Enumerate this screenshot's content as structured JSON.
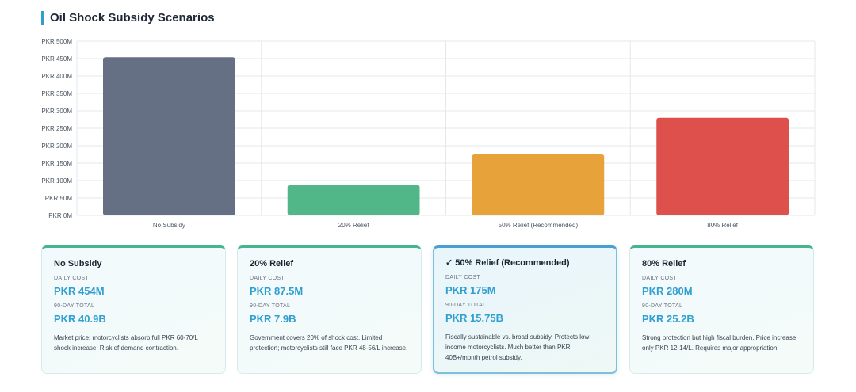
{
  "title": "Oil Shock Subsidy Scenarios",
  "colors": {
    "accent": "#2f9fd0",
    "grid": "#e5e7eb",
    "bars": [
      "#667085",
      "#52b788",
      "#e7a23a",
      "#de504c"
    ]
  },
  "chart_data": {
    "type": "bar",
    "categories": [
      "No Subsidy",
      "20% Relief",
      "50% Relief (Recommended)",
      "80% Relief"
    ],
    "values": [
      454,
      87.5,
      175,
      280
    ],
    "unit": "PKR M",
    "ylim": [
      0,
      500
    ],
    "yticks": [
      {
        "value": 500,
        "label": "PKR 500M"
      },
      {
        "value": 450,
        "label": "PKR 450M"
      },
      {
        "value": 400,
        "label": "PKR 400M"
      },
      {
        "value": 350,
        "label": "PKR 350M"
      },
      {
        "value": 300,
        "label": "PKR 300M"
      },
      {
        "value": 250,
        "label": "PKR 250M"
      },
      {
        "value": 200,
        "label": "PKR 200M"
      },
      {
        "value": 150,
        "label": "PKR 150M"
      },
      {
        "value": 100,
        "label": "PKR 100M"
      },
      {
        "value": 50,
        "label": "PKR 50M"
      },
      {
        "value": 0,
        "label": "PKR 0M"
      }
    ],
    "grid": true,
    "legend": "none"
  },
  "cards": [
    {
      "title": "No Subsidy",
      "daily_label": "DAILY COST",
      "daily_value": "PKR 454M",
      "total_label": "90-DAY TOTAL",
      "total_value": "PKR 40.9B",
      "description": "Market price; motorcyclists absorb full PKR 60-70/L shock increase. Risk of demand contraction."
    },
    {
      "title": "20% Relief",
      "daily_label": "DAILY COST",
      "daily_value": "PKR 87.5M",
      "total_label": "90-DAY TOTAL",
      "total_value": "PKR 7.9B",
      "description": "Government covers 20% of shock cost. Limited protection; motorcyclists still face PKR 48-56/L increase."
    },
    {
      "title": "✓ 50% Relief (Recommended)",
      "daily_label": "DAILY COST",
      "daily_value": "PKR 175M",
      "total_label": "90-DAY TOTAL",
      "total_value": "PKR 15.75B",
      "description": "Fiscally sustainable vs. broad subsidy. Protects low-income motorcyclists. Much better than PKR 40B+/month petrol subsidy."
    },
    {
      "title": "80% Relief",
      "daily_label": "DAILY COST",
      "daily_value": "PKR 280M",
      "total_label": "90-DAY TOTAL",
      "total_value": "PKR 25.2B",
      "description": "Strong protection but high fiscal burden. Price increase only PKR 12-14/L. Requires major appropriation."
    }
  ]
}
